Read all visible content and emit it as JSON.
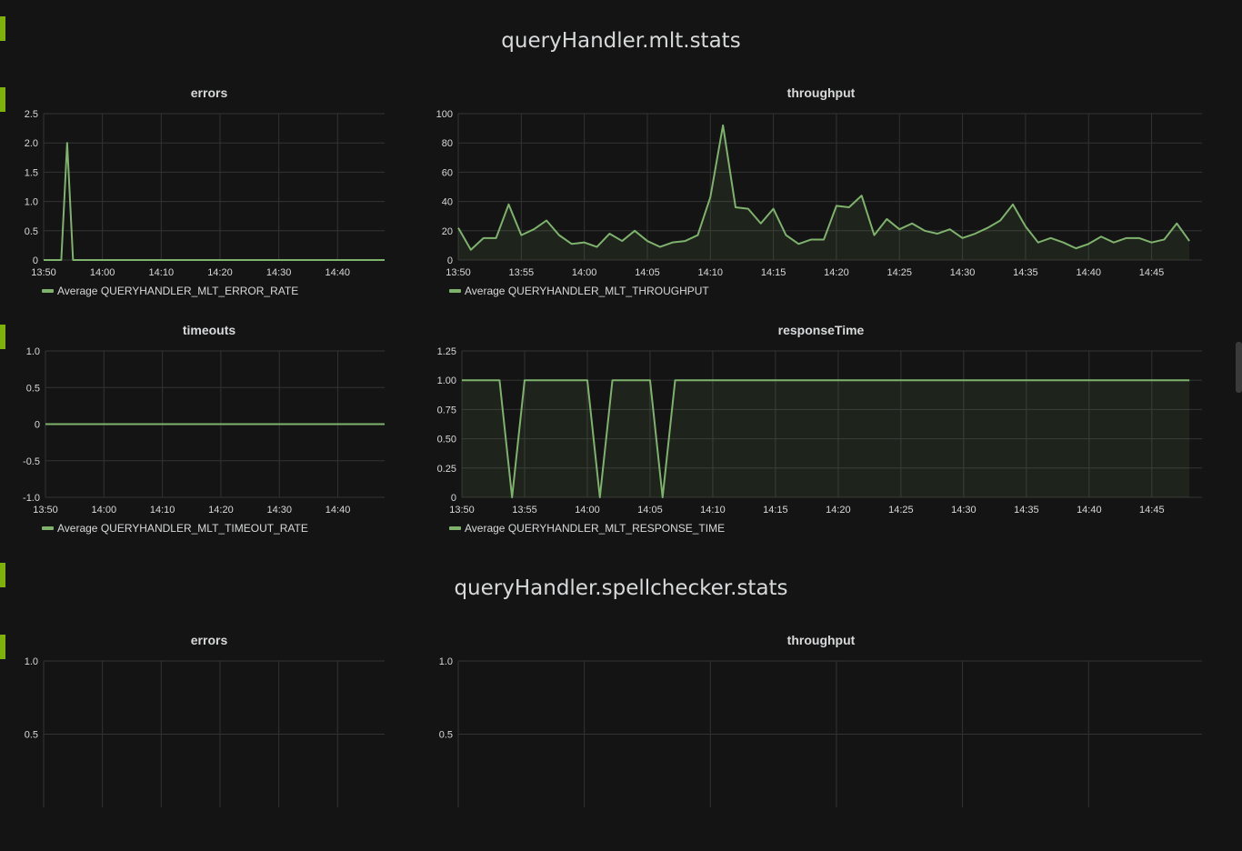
{
  "sections": [
    {
      "title": "queryHandler.mlt.stats"
    },
    {
      "title": "queryHandler.spellchecker.stats"
    }
  ],
  "colors": {
    "series": "#7eb26d",
    "grid": "#333333",
    "background": "#141414",
    "row_marker": "#7eb20a"
  },
  "panels": {
    "mlt_errors": {
      "title": "errors",
      "legend": "Average QUERYHANDLER_MLT_ERROR_RATE"
    },
    "mlt_throughput": {
      "title": "throughput",
      "legend": "Average QUERYHANDLER_MLT_THROUGHPUT"
    },
    "mlt_timeouts": {
      "title": "timeouts",
      "legend": "Average QUERYHANDLER_MLT_TIMEOUT_RATE"
    },
    "mlt_responsetime": {
      "title": "responseTime",
      "legend": "Average QUERYHANDLER_MLT_RESPONSE_TIME"
    },
    "spell_errors": {
      "title": "errors"
    },
    "spell_throughput": {
      "title": "throughput"
    }
  },
  "chart_data": [
    {
      "id": "mlt_errors",
      "type": "line",
      "title": "errors",
      "x_ticks": [
        "13:50",
        "14:00",
        "14:10",
        "14:20",
        "14:30",
        "14:40"
      ],
      "y_ticks": [
        "0",
        "0.5",
        "1.0",
        "1.5",
        "2.0",
        "2.5"
      ],
      "ylim": [
        0,
        2.5
      ],
      "xlim_minutes": [
        0,
        58
      ],
      "grid": true,
      "legend_placement": "bottom-left",
      "series": [
        {
          "name": "Average QUERYHANDLER_MLT_ERROR_RATE",
          "fill": false,
          "points": [
            [
              0,
              0
            ],
            [
              3,
              0
            ],
            [
              4,
              2
            ],
            [
              5,
              0
            ],
            [
              58,
              0
            ]
          ]
        }
      ]
    },
    {
      "id": "mlt_throughput",
      "type": "area",
      "title": "throughput",
      "x_ticks": [
        "13:50",
        "13:55",
        "14:00",
        "14:05",
        "14:10",
        "14:15",
        "14:20",
        "14:25",
        "14:30",
        "14:35",
        "14:40",
        "14:45"
      ],
      "y_ticks": [
        "0",
        "20",
        "40",
        "60",
        "80",
        "100"
      ],
      "ylim": [
        0,
        100
      ],
      "xlim_minutes": [
        0,
        59
      ],
      "grid": true,
      "legend_placement": "bottom-left",
      "series": [
        {
          "name": "Average QUERYHANDLER_MLT_THROUGHPUT",
          "fill": true,
          "points": [
            [
              0,
              22
            ],
            [
              1,
              7
            ],
            [
              2,
              15
            ],
            [
              3,
              15
            ],
            [
              4,
              38
            ],
            [
              5,
              17
            ],
            [
              6,
              21
            ],
            [
              7,
              27
            ],
            [
              8,
              17
            ],
            [
              9,
              11
            ],
            [
              10,
              12
            ],
            [
              11,
              9
            ],
            [
              12,
              18
            ],
            [
              13,
              13
            ],
            [
              14,
              20
            ],
            [
              15,
              13
            ],
            [
              16,
              9
            ],
            [
              17,
              12
            ],
            [
              18,
              13
            ],
            [
              19,
              17
            ],
            [
              20,
              43
            ],
            [
              21,
              92
            ],
            [
              22,
              36
            ],
            [
              23,
              35
            ],
            [
              24,
              25
            ],
            [
              25,
              35
            ],
            [
              26,
              17
            ],
            [
              27,
              11
            ],
            [
              28,
              14
            ],
            [
              29,
              14
            ],
            [
              30,
              37
            ],
            [
              31,
              36
            ],
            [
              32,
              44
            ],
            [
              33,
              17
            ],
            [
              34,
              28
            ],
            [
              35,
              21
            ],
            [
              36,
              25
            ],
            [
              37,
              20
            ],
            [
              38,
              18
            ],
            [
              39,
              21
            ],
            [
              40,
              15
            ],
            [
              41,
              18
            ],
            [
              42,
              22
            ],
            [
              43,
              27
            ],
            [
              44,
              38
            ],
            [
              45,
              23
            ],
            [
              46,
              12
            ],
            [
              47,
              15
            ],
            [
              48,
              12
            ],
            [
              49,
              8
            ],
            [
              50,
              11
            ],
            [
              51,
              16
            ],
            [
              52,
              12
            ],
            [
              53,
              15
            ],
            [
              54,
              15
            ],
            [
              55,
              12
            ],
            [
              56,
              14
            ],
            [
              57,
              25
            ],
            [
              58,
              13
            ]
          ]
        }
      ]
    },
    {
      "id": "mlt_timeouts",
      "type": "line",
      "title": "timeouts",
      "x_ticks": [
        "13:50",
        "14:00",
        "14:10",
        "14:20",
        "14:30",
        "14:40"
      ],
      "y_ticks": [
        "-1.0",
        "-0.5",
        "0",
        "0.5",
        "1.0"
      ],
      "ylim": [
        -1,
        1
      ],
      "xlim_minutes": [
        0,
        58
      ],
      "grid": true,
      "legend_placement": "bottom-left",
      "series": [
        {
          "name": "Average QUERYHANDLER_MLT_TIMEOUT_RATE",
          "fill": false,
          "points": [
            [
              0,
              0
            ],
            [
              58,
              0
            ]
          ]
        }
      ]
    },
    {
      "id": "mlt_responsetime",
      "type": "area",
      "title": "responseTime",
      "x_ticks": [
        "13:50",
        "13:55",
        "14:00",
        "14:05",
        "14:10",
        "14:15",
        "14:20",
        "14:25",
        "14:30",
        "14:35",
        "14:40",
        "14:45"
      ],
      "y_ticks": [
        "0",
        "0.25",
        "0.50",
        "0.75",
        "1.00",
        "1.25"
      ],
      "ylim": [
        0,
        1.25
      ],
      "xlim_minutes": [
        0,
        59
      ],
      "grid": true,
      "legend_placement": "bottom-left",
      "series": [
        {
          "name": "Average QUERYHANDLER_MLT_RESPONSE_TIME",
          "fill": true,
          "points": [
            [
              0,
              1
            ],
            [
              3,
              1
            ],
            [
              4,
              0
            ],
            [
              5,
              1
            ],
            [
              10,
              1
            ],
            [
              11,
              0
            ],
            [
              12,
              1
            ],
            [
              15,
              1
            ],
            [
              16,
              0
            ],
            [
              17,
              1
            ],
            [
              58,
              1
            ]
          ]
        }
      ]
    },
    {
      "id": "spell_errors",
      "type": "line",
      "title": "errors",
      "x_ticks": [],
      "y_ticks": [
        "0.5",
        "1.0"
      ],
      "ylim": [
        0,
        1
      ],
      "xlim_minutes": [
        0,
        58
      ],
      "grid": true,
      "series": []
    },
    {
      "id": "spell_throughput",
      "type": "line",
      "title": "throughput",
      "x_ticks": [],
      "y_ticks": [
        "0.5",
        "1.0"
      ],
      "ylim": [
        0,
        1
      ],
      "xlim_minutes": [
        0,
        59
      ],
      "grid": true,
      "series": []
    }
  ]
}
